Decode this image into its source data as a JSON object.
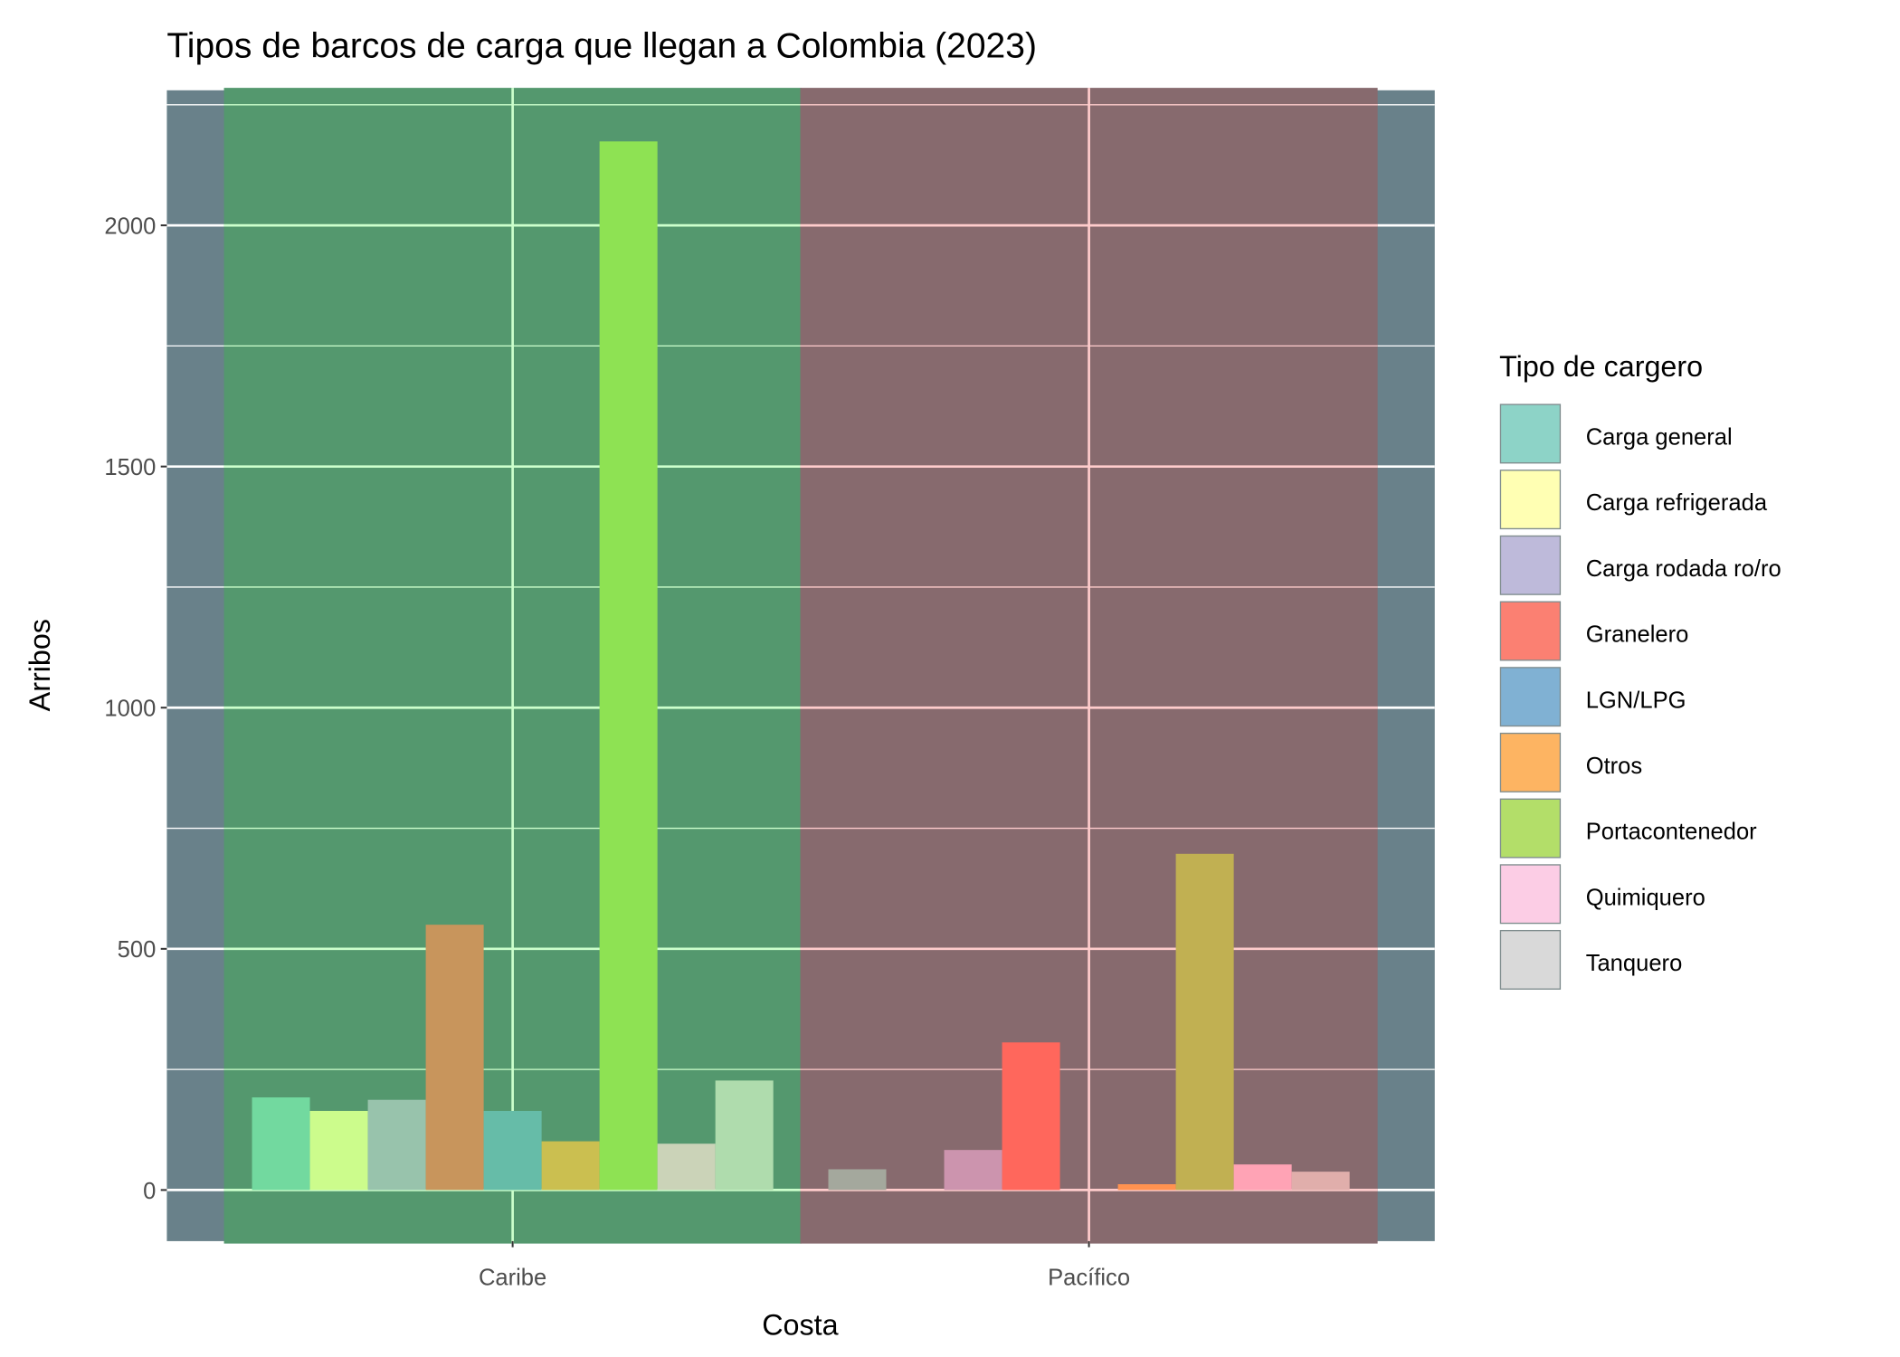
{
  "chart_data": {
    "type": "bar",
    "title": "Tipos de barcos de carga que llegan a Colombia (2023)",
    "xlabel": "Costa",
    "ylabel": "Arribos",
    "categories": [
      "Caribe",
      "Pacífico"
    ],
    "ylim": [
      -106,
      2280
    ],
    "yticks": [
      0,
      500,
      1000,
      1500,
      2000
    ],
    "grid": true,
    "legend": {
      "title": "Tipo de cargero",
      "placement": "right",
      "items": [
        {
          "label": "Carga general",
          "color": "#8DD3C7"
        },
        {
          "label": "Carga refrigerada",
          "color": "#FFFFB3"
        },
        {
          "label": "Carga rodada ro/ro",
          "color": "#BEBADA"
        },
        {
          "label": "Granelero",
          "color": "#FB8072"
        },
        {
          "label": "LGN/LPG",
          "color": "#80B1D3"
        },
        {
          "label": "Otros",
          "color": "#FDB462"
        },
        {
          "label": "Portacontenedor",
          "color": "#B3DE69"
        },
        {
          "label": "Quimiquero",
          "color": "#FCCDE5"
        },
        {
          "label": "Tanquero",
          "color": "#D9D9D9"
        }
      ]
    },
    "series": [
      {
        "name": "Carga general",
        "values": [
          192,
          43
        ]
      },
      {
        "name": "Carga refrigerada",
        "values": [
          164,
          null
        ]
      },
      {
        "name": "Carga rodada ro/ro",
        "values": [
          187,
          83
        ]
      },
      {
        "name": "Granelero",
        "values": [
          550,
          306
        ]
      },
      {
        "name": "LGN/LPG",
        "values": [
          164,
          null
        ]
      },
      {
        "name": "Otros",
        "values": [
          101,
          12
        ]
      },
      {
        "name": "Portacontenedor",
        "values": [
          2174,
          697
        ]
      },
      {
        "name": "Quimiquero",
        "values": [
          96,
          53
        ]
      },
      {
        "name": "Tanquero",
        "values": [
          227,
          38
        ]
      }
    ],
    "rendered_bar_colors": {
      "Caribe": [
        "#72d99f",
        "#ccfc8c",
        "#98c3ac",
        "#c8955c",
        "#66bca8",
        "#cbbf50",
        "#8ee253",
        "#cbd3b8",
        "#afdcad"
      ],
      "Pacífico": [
        "#a4a89d",
        null,
        "#cc94ae",
        "#ff675c",
        null,
        "#ff9250",
        "#c1b052",
        "#ffa3b5",
        "#e0aeab"
      ]
    },
    "colors": {
      "panel_background": "#69818a",
      "caribe_band": "#54986e",
      "caribe_grid": "#ccffcc",
      "pacifico_band": "#876a6e",
      "pacifico_grid": "#ffcccc",
      "grid": "#ffffff"
    }
  }
}
